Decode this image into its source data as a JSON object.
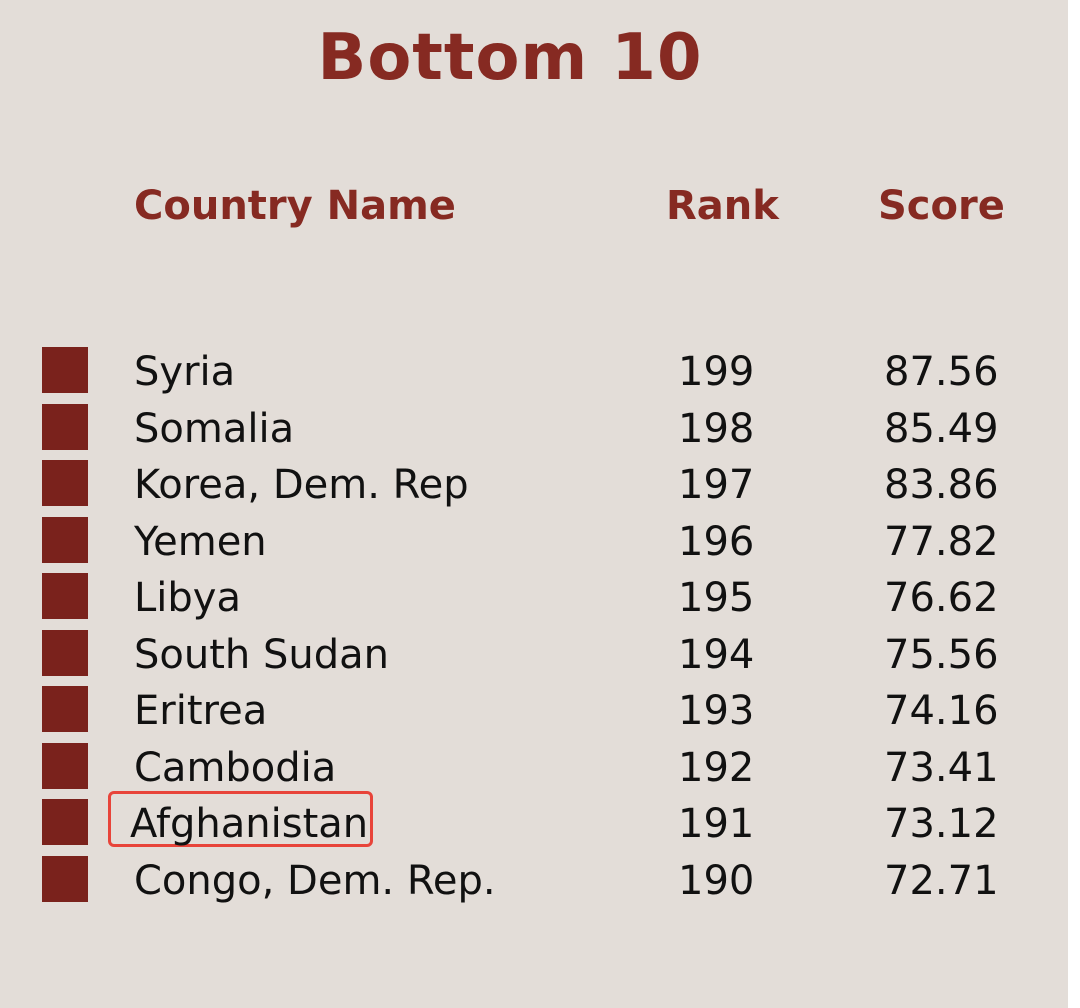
{
  "title": "Bottom 10",
  "headers": {
    "country": "Country Name",
    "rank": "Rank",
    "score": "Score"
  },
  "rows": [
    {
      "country": "Syria",
      "rank": "199",
      "score": "87.56"
    },
    {
      "country": "Somalia",
      "rank": "198",
      "score": "85.49"
    },
    {
      "country": "Korea, Dem. Rep",
      "rank": "197",
      "score": "83.86"
    },
    {
      "country": "Yemen",
      "rank": "196",
      "score": "77.82"
    },
    {
      "country": "Libya",
      "rank": "195",
      "score": "76.62"
    },
    {
      "country": "South Sudan",
      "rank": "194",
      "score": "75.56"
    },
    {
      "country": "Eritrea",
      "rank": "193",
      "score": "74.16"
    },
    {
      "country": "Cambodia",
      "rank": "192",
      "score": "73.41"
    },
    {
      "country": "Afghanistan",
      "rank": "191",
      "score": "73.12",
      "highlighted": true
    },
    {
      "country": "Congo, Dem. Rep.",
      "rank": "190",
      "score": "72.71"
    }
  ],
  "colors": {
    "accent": "#862a22",
    "marker": "#7a221c",
    "background": "#e3ddd8",
    "highlight_box": "#e8443a",
    "text": "#111111"
  }
}
